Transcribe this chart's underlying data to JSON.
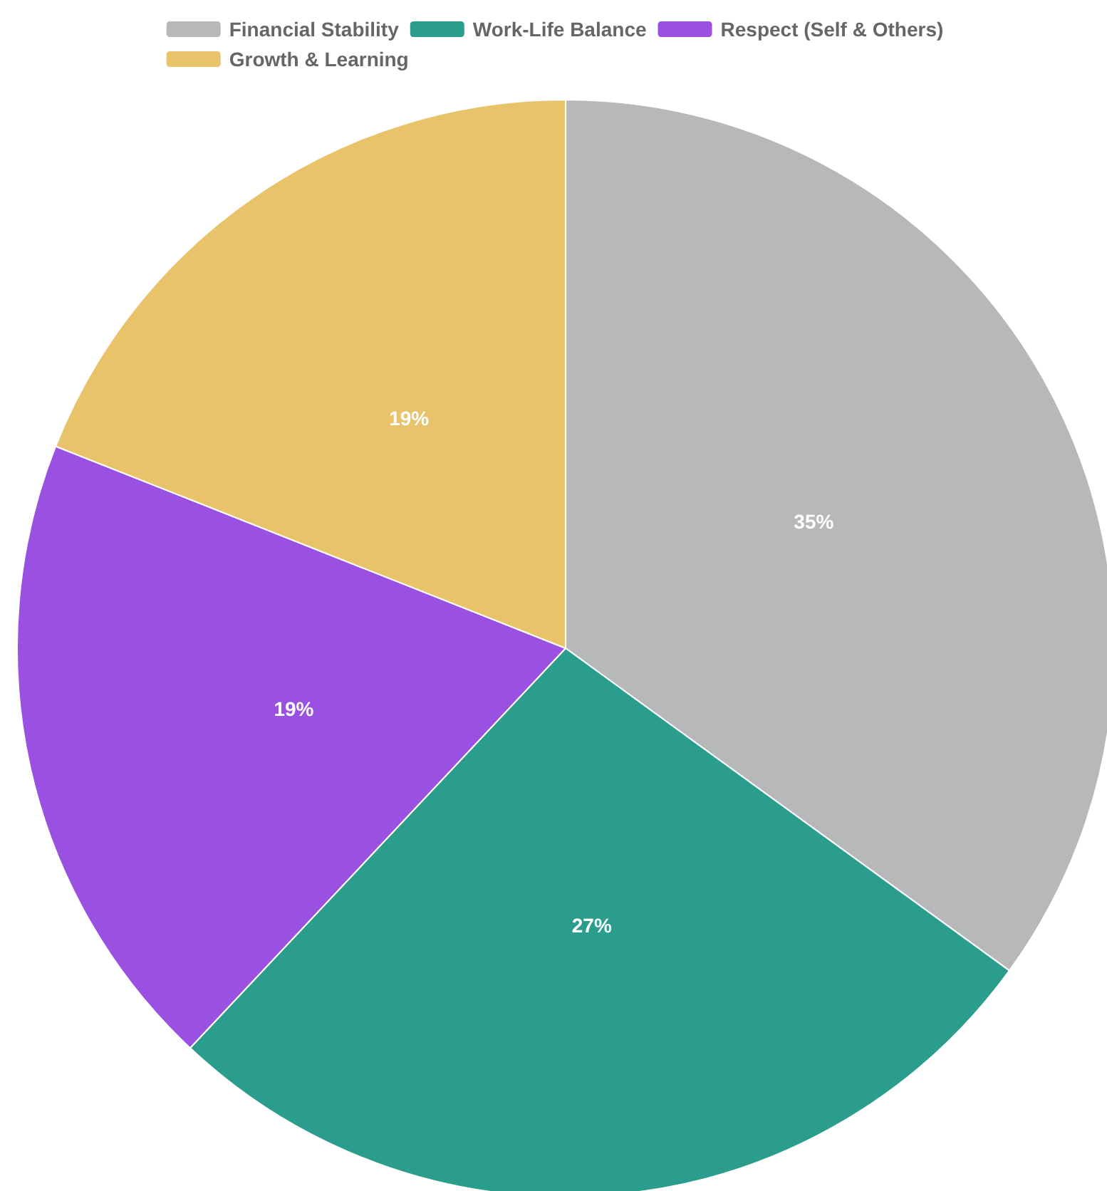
{
  "chart_data": {
    "type": "pie",
    "categories": [
      "Financial Stability",
      "Work-Life Balance",
      "Respect (Self & Others)",
      "Growth & Learning"
    ],
    "values": [
      35,
      27,
      19,
      19
    ],
    "colors": [
      "#b7b8b9",
      "#2a9d8d",
      "#9a50e0",
      "#e8c36a"
    ],
    "value_labels": [
      "35%",
      "27%",
      "19%",
      "19%"
    ],
    "legend": "top"
  }
}
